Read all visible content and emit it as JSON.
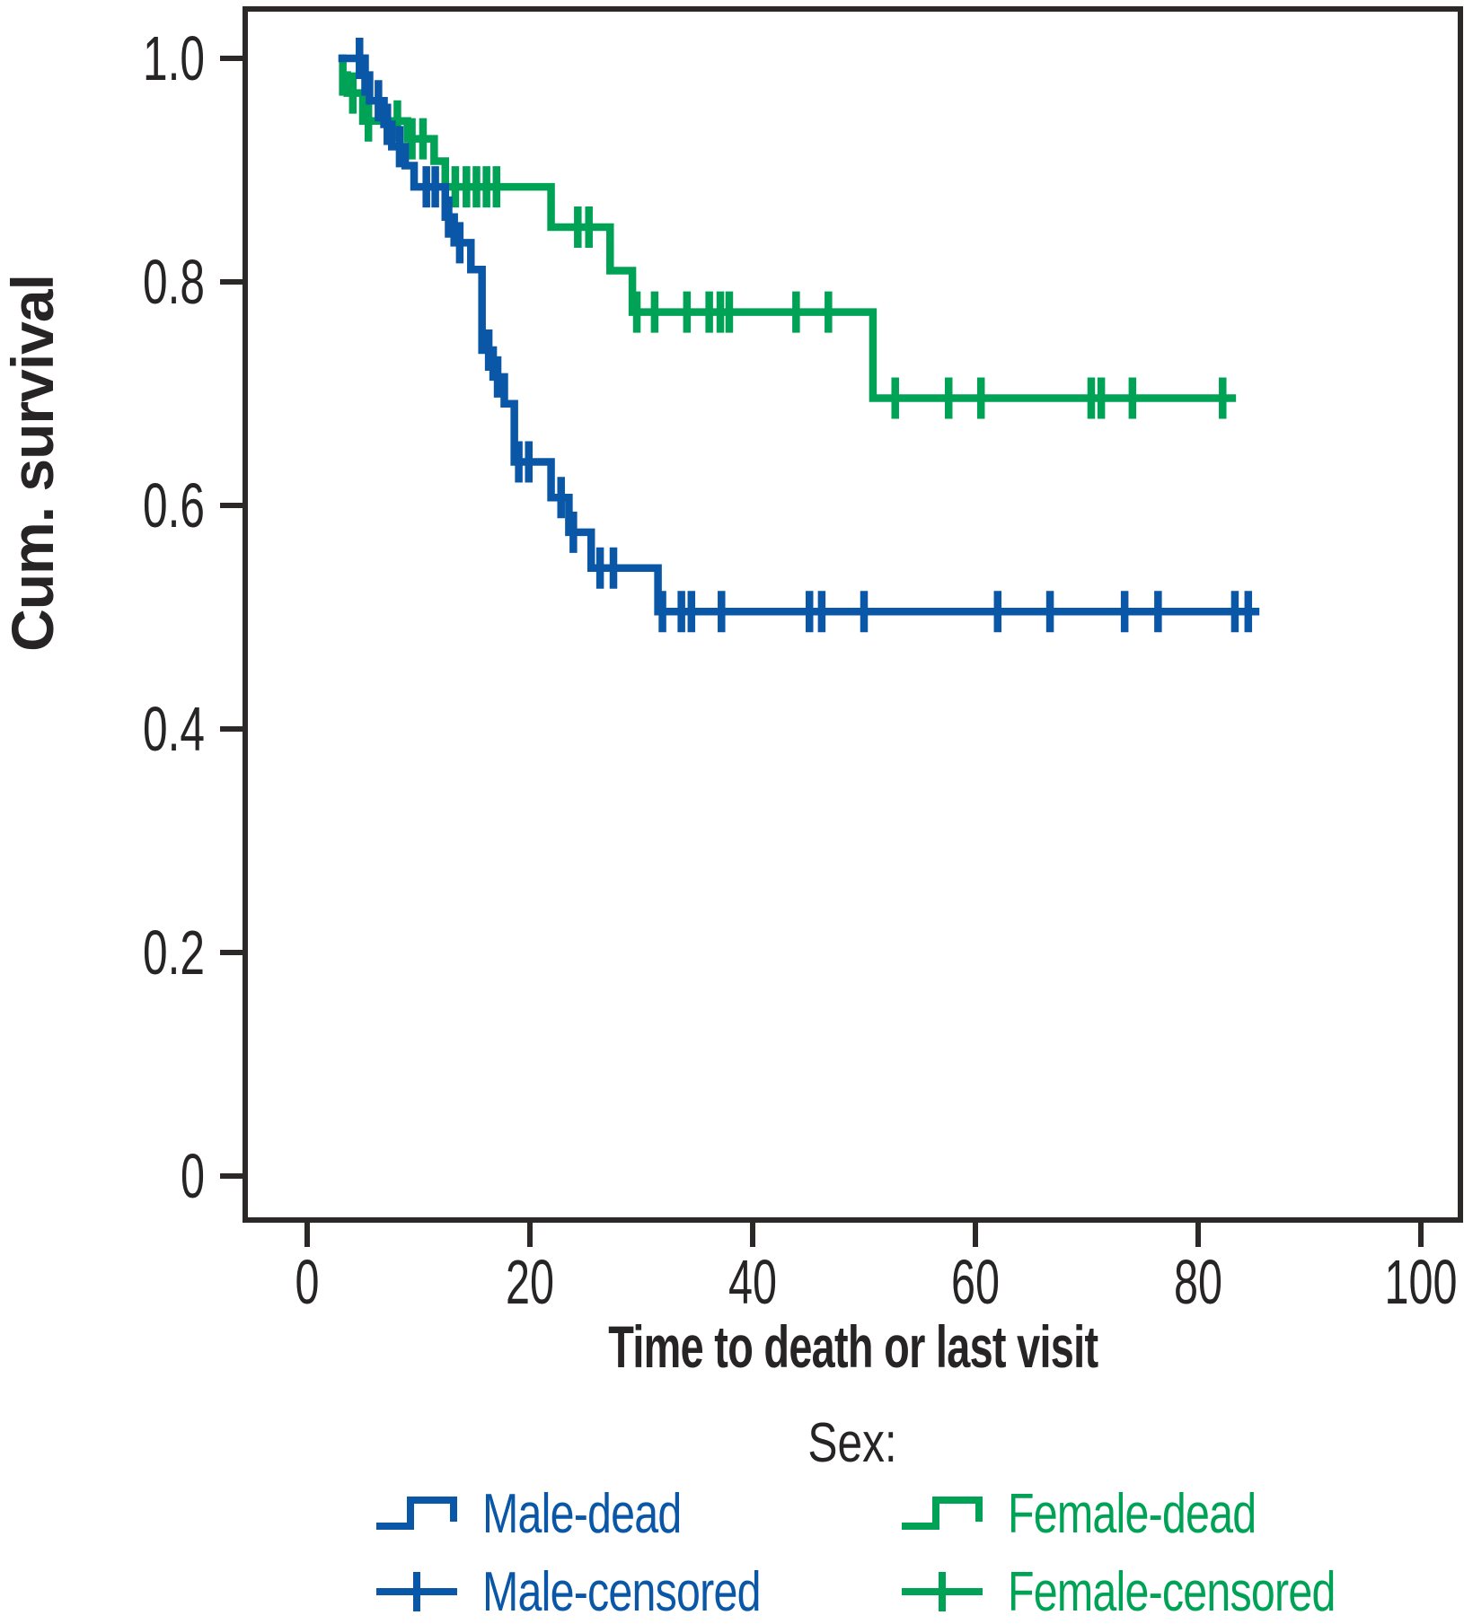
{
  "chart_data": {
    "type": "line",
    "subtype": "kaplan-meier-step-curves",
    "title": "",
    "xlabel": "Time to death or last visit",
    "ylabel": "Cum. survival",
    "x_ticks": {
      "values": [
        0,
        20,
        40,
        60,
        80,
        100
      ],
      "labels": [
        "0",
        "20",
        "40",
        "60",
        "80",
        "100"
      ]
    },
    "y_ticks": {
      "values": [
        1.0,
        0.8,
        0.6,
        0.4,
        0.2,
        0
      ],
      "labels": [
        "1.0",
        "0.8",
        "0.6",
        "0.4",
        "0.2",
        "0"
      ]
    },
    "xlim": [
      -5.5,
      103.5
    ],
    "ylim": [
      -0.04,
      1.045
    ],
    "grid": false,
    "legend_position": "bottom",
    "axis_color": "#2b2827",
    "text_color": "#262424",
    "series": [
      {
        "name": "Female",
        "color": "#00a256",
        "start": [
          2.9,
          0.985
        ],
        "steps": [
          [
            3.6,
            0.969
          ],
          [
            5.0,
            0.944
          ],
          [
            9.0,
            0.928
          ],
          [
            11.4,
            0.908
          ],
          [
            12.4,
            0.885
          ],
          [
            21.9,
            0.849
          ],
          [
            27.2,
            0.81
          ],
          [
            29.2,
            0.773
          ],
          [
            50.8,
            0.696
          ]
        ],
        "end_time": 83.4,
        "censored": [
          [
            3.2,
            0.985
          ],
          [
            4.1,
            0.969
          ],
          [
            5.5,
            0.944
          ],
          [
            8.1,
            0.944
          ],
          [
            9.4,
            0.928
          ],
          [
            10.4,
            0.928
          ],
          [
            13.3,
            0.885
          ],
          [
            14.3,
            0.885
          ],
          [
            15.2,
            0.885
          ],
          [
            16.1,
            0.885
          ],
          [
            17.0,
            0.885
          ],
          [
            24.3,
            0.849
          ],
          [
            25.3,
            0.849
          ],
          [
            29.6,
            0.773
          ],
          [
            31.2,
            0.773
          ],
          [
            34.1,
            0.773
          ],
          [
            36.1,
            0.773
          ],
          [
            37.1,
            0.773
          ],
          [
            37.9,
            0.773
          ],
          [
            43.9,
            0.773
          ],
          [
            46.8,
            0.773
          ],
          [
            52.8,
            0.696
          ],
          [
            57.6,
            0.696
          ],
          [
            60.5,
            0.696
          ],
          [
            70.4,
            0.696
          ],
          [
            71.3,
            0.696
          ],
          [
            74.1,
            0.696
          ],
          [
            82.2,
            0.696
          ]
        ]
      },
      {
        "name": "Male",
        "color": "#0a57a7",
        "start": [
          2.8,
          1.0
        ],
        "steps": [
          [
            5.0,
            0.985
          ],
          [
            5.6,
            0.962
          ],
          [
            6.9,
            0.941
          ],
          [
            7.6,
            0.921
          ],
          [
            8.8,
            0.904
          ],
          [
            9.6,
            0.885
          ],
          [
            12.4,
            0.858
          ],
          [
            13.2,
            0.835
          ],
          [
            14.7,
            0.811
          ],
          [
            15.7,
            0.739
          ],
          [
            16.7,
            0.715
          ],
          [
            17.7,
            0.691
          ],
          [
            18.6,
            0.639
          ],
          [
            21.9,
            0.607
          ],
          [
            23.5,
            0.576
          ],
          [
            25.5,
            0.544
          ],
          [
            31.5,
            0.505
          ]
        ],
        "end_time": 85.5,
        "censored": [
          [
            4.7,
            1.0
          ],
          [
            5.2,
            0.985
          ],
          [
            6.4,
            0.962
          ],
          [
            7.2,
            0.941
          ],
          [
            8.3,
            0.921
          ],
          [
            10.7,
            0.885
          ],
          [
            11.5,
            0.885
          ],
          [
            12.7,
            0.858
          ],
          [
            13.7,
            0.835
          ],
          [
            16.3,
            0.739
          ],
          [
            17.1,
            0.715
          ],
          [
            19.0,
            0.639
          ],
          [
            19.9,
            0.639
          ],
          [
            22.8,
            0.607
          ],
          [
            23.9,
            0.576
          ],
          [
            26.3,
            0.544
          ],
          [
            27.5,
            0.544
          ],
          [
            31.9,
            0.505
          ],
          [
            33.6,
            0.505
          ],
          [
            34.5,
            0.505
          ],
          [
            37.2,
            0.505
          ],
          [
            45.1,
            0.505
          ],
          [
            46.2,
            0.505
          ],
          [
            50.0,
            0.505
          ],
          [
            62.0,
            0.505
          ],
          [
            66.7,
            0.505
          ],
          [
            73.4,
            0.505
          ],
          [
            76.4,
            0.505
          ],
          [
            83.3,
            0.505
          ],
          [
            84.5,
            0.505
          ]
        ]
      }
    ]
  },
  "legend": {
    "title": "Sex:",
    "items": [
      {
        "label": "Male-dead",
        "color": "#0a57a7",
        "symbol": "step-line",
        "icon": "male-dead-step-icon"
      },
      {
        "label": "Female-dead",
        "color": "#00a256",
        "symbol": "step-line",
        "icon": "female-dead-step-icon"
      },
      {
        "label": "Male-censored",
        "color": "#0a57a7",
        "symbol": "censored-tick",
        "icon": "male-censored-tick-icon"
      },
      {
        "label": "Female-censored",
        "color": "#00a256",
        "symbol": "censored-tick",
        "icon": "female-censored-tick-icon"
      }
    ]
  }
}
